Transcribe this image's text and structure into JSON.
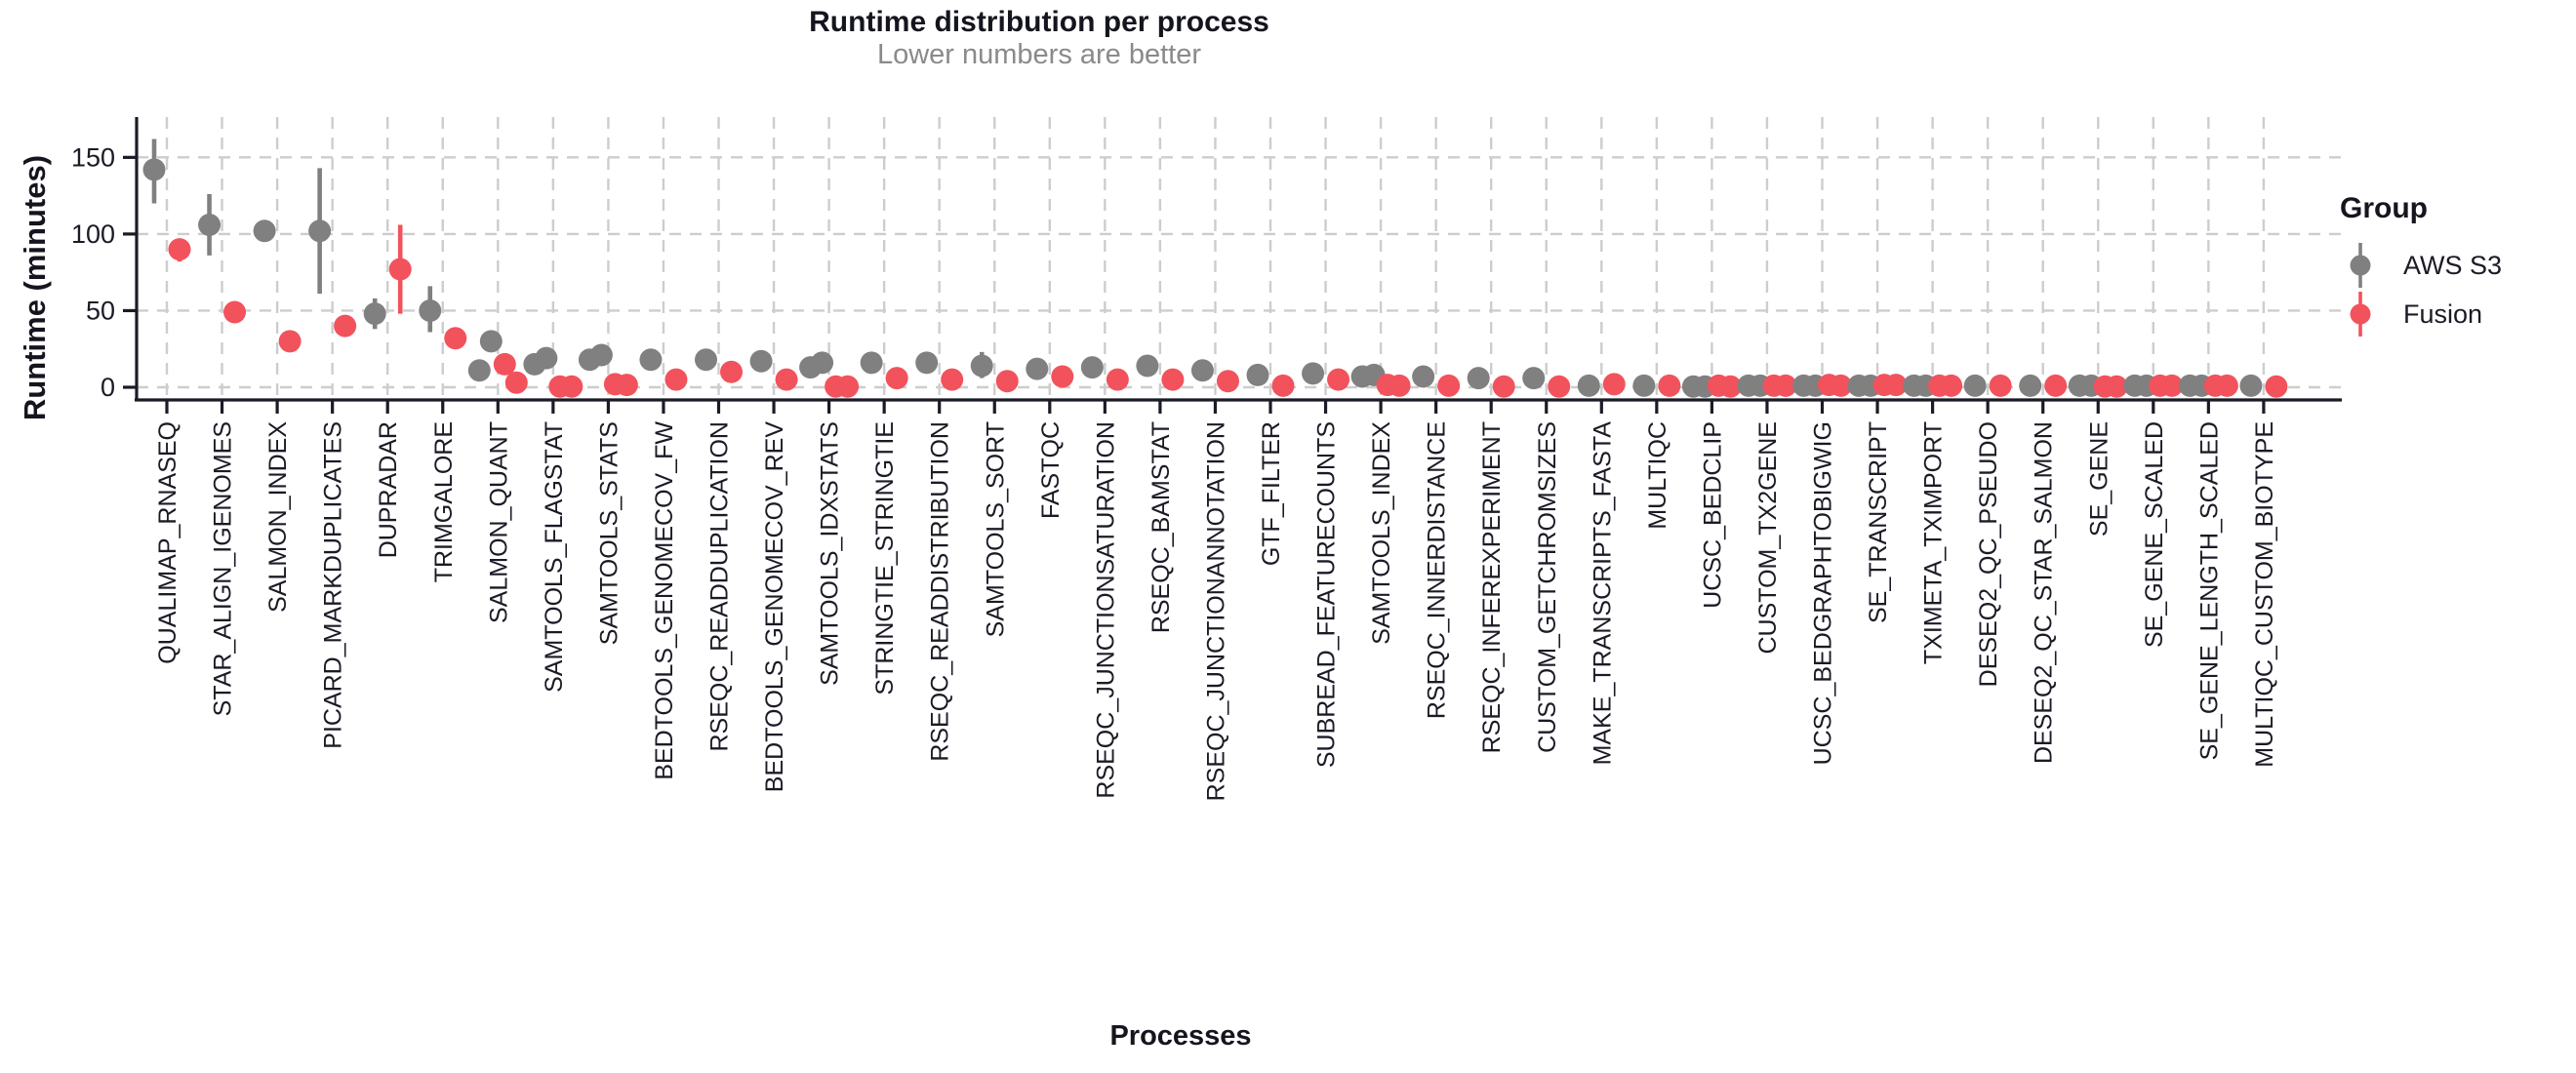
{
  "page": {
    "background": "#ffffff"
  },
  "header": {
    "title": "Runtime distribution per process",
    "subtitle": "Lower numbers are better"
  },
  "axes": {
    "y_title": "Runtime (minutes)",
    "x_title": "Processes"
  },
  "legend": {
    "title": "Group",
    "items": [
      {
        "label": "AWS S3",
        "color": "#808080"
      },
      {
        "label": "Fusion",
        "color": "#f2525c"
      }
    ]
  },
  "style": {
    "accent_gray": "#808080",
    "accent_red": "#f2525c",
    "axis_color": "#1b1b26",
    "grid_color": "#cdcdcd",
    "subtitle_color": "#8a8a8a"
  },
  "chart_data": {
    "type": "scatter",
    "title": "Runtime distribution per process",
    "subtitle": "Lower numbers are better",
    "xlabel": "Processes",
    "ylabel": "Runtime (minutes)",
    "ylim": [
      0,
      165
    ],
    "yticks": [
      0,
      50,
      100,
      150
    ],
    "grid": true,
    "legend_position": "right",
    "groups": [
      {
        "name": "AWS S3",
        "color": "#808080"
      },
      {
        "name": "Fusion",
        "color": "#f2525c"
      }
    ],
    "processes": [
      {
        "name": "QUALIMAP_RNASEQ",
        "aws": {
          "points": [
            142
          ],
          "range": [
            120,
            162
          ]
        },
        "fusion": {
          "points": [
            90
          ],
          "range": [
            82,
            96
          ]
        }
      },
      {
        "name": "STAR_ALIGN_IGENOMES",
        "aws": {
          "points": [
            106
          ],
          "range": [
            86,
            126
          ]
        },
        "fusion": {
          "points": [
            49
          ]
        }
      },
      {
        "name": "SALMON_INDEX",
        "aws": {
          "points": [
            102
          ]
        },
        "fusion": {
          "points": [
            30
          ]
        }
      },
      {
        "name": "PICARD_MARKDUPLICATES",
        "aws": {
          "points": [
            102
          ],
          "range": [
            61,
            143
          ]
        },
        "fusion": {
          "points": [
            40
          ]
        }
      },
      {
        "name": "DUPRADAR",
        "aws": {
          "points": [
            48
          ],
          "range": [
            38,
            58
          ]
        },
        "fusion": {
          "points": [
            77
          ],
          "range": [
            48,
            106
          ]
        }
      },
      {
        "name": "TRIMGALORE",
        "aws": {
          "points": [
            50
          ],
          "range": [
            36,
            66
          ]
        },
        "fusion": {
          "points": [
            32
          ]
        }
      },
      {
        "name": "SALMON_QUANT",
        "aws": {
          "points": [
            30,
            11
          ]
        },
        "fusion": {
          "points": [
            15,
            3
          ]
        }
      },
      {
        "name": "SAMTOOLS_FLAGSTAT",
        "aws": {
          "points": [
            19,
            15
          ]
        },
        "fusion": {
          "points": [
            0.5,
            0.5
          ]
        }
      },
      {
        "name": "SAMTOOLS_STATS",
        "aws": {
          "points": [
            21,
            18
          ]
        },
        "fusion": {
          "points": [
            2,
            1.5
          ]
        }
      },
      {
        "name": "BEDTOOLS_GENOMECOV_FW",
        "aws": {
          "points": [
            18
          ]
        },
        "fusion": {
          "points": [
            5
          ]
        }
      },
      {
        "name": "RSEQC_READDUPLICATION",
        "aws": {
          "points": [
            18
          ]
        },
        "fusion": {
          "points": [
            10
          ]
        }
      },
      {
        "name": "BEDTOOLS_GENOMECOV_REV",
        "aws": {
          "points": [
            17
          ]
        },
        "fusion": {
          "points": [
            5
          ]
        }
      },
      {
        "name": "SAMTOOLS_IDXSTATS",
        "aws": {
          "points": [
            16,
            13
          ]
        },
        "fusion": {
          "points": [
            0.5,
            0.5
          ]
        }
      },
      {
        "name": "STRINGTIE_STRINGTIE",
        "aws": {
          "points": [
            16
          ]
        },
        "fusion": {
          "points": [
            6
          ]
        }
      },
      {
        "name": "RSEQC_READDISTRIBUTION",
        "aws": {
          "points": [
            16
          ]
        },
        "fusion": {
          "points": [
            5
          ]
        }
      },
      {
        "name": "SAMTOOLS_SORT",
        "aws": {
          "points": [
            14
          ],
          "range": [
            6,
            23
          ]
        },
        "fusion": {
          "points": [
            4
          ]
        }
      },
      {
        "name": "FASTQC",
        "aws": {
          "points": [
            12
          ]
        },
        "fusion": {
          "points": [
            7
          ]
        }
      },
      {
        "name": "RSEQC_JUNCTIONSATURATION",
        "aws": {
          "points": [
            13
          ]
        },
        "fusion": {
          "points": [
            5
          ]
        }
      },
      {
        "name": "RSEQC_BAMSTAT",
        "aws": {
          "points": [
            14
          ]
        },
        "fusion": {
          "points": [
            5
          ]
        }
      },
      {
        "name": "RSEQC_JUNCTIONANNOTATION",
        "aws": {
          "points": [
            11
          ]
        },
        "fusion": {
          "points": [
            4
          ]
        }
      },
      {
        "name": "GTF_FILTER",
        "aws": {
          "points": [
            8
          ]
        },
        "fusion": {
          "points": [
            1
          ]
        }
      },
      {
        "name": "SUBREAD_FEATURECOUNTS",
        "aws": {
          "points": [
            9
          ]
        },
        "fusion": {
          "points": [
            5
          ]
        }
      },
      {
        "name": "SAMTOOLS_INDEX",
        "aws": {
          "points": [
            8,
            7
          ]
        },
        "fusion": {
          "points": [
            1.5,
            1
          ]
        }
      },
      {
        "name": "RSEQC_INNERDISTANCE",
        "aws": {
          "points": [
            7
          ]
        },
        "fusion": {
          "points": [
            1
          ]
        }
      },
      {
        "name": "RSEQC_INFEREXPERIMENT",
        "aws": {
          "points": [
            6
          ]
        },
        "fusion": {
          "points": [
            0.5
          ]
        }
      },
      {
        "name": "CUSTOM_GETCHROMSIZES",
        "aws": {
          "points": [
            6
          ]
        },
        "fusion": {
          "points": [
            0.5
          ]
        }
      },
      {
        "name": "MAKE_TRANSCRIPTS_FASTA",
        "aws": {
          "points": [
            1
          ]
        },
        "fusion": {
          "points": [
            2
          ]
        }
      },
      {
        "name": "MULTIQC",
        "aws": {
          "points": [
            1
          ]
        },
        "fusion": {
          "points": [
            1
          ]
        }
      },
      {
        "name": "UCSC_BEDCLIP",
        "aws": {
          "points": [
            0.5,
            0.5
          ]
        },
        "fusion": {
          "points": [
            1,
            0.5
          ]
        }
      },
      {
        "name": "CUSTOM_TX2GENE",
        "aws": {
          "points": [
            1,
            1
          ]
        },
        "fusion": {
          "points": [
            1,
            1
          ]
        }
      },
      {
        "name": "UCSC_BEDGRAPHTOBIGWIG",
        "aws": {
          "points": [
            1,
            1
          ]
        },
        "fusion": {
          "points": [
            1.5,
            1
          ]
        }
      },
      {
        "name": "SE_TRANSCRIPT",
        "aws": {
          "points": [
            1,
            1
          ]
        },
        "fusion": {
          "points": [
            1.5,
            1.5
          ]
        }
      },
      {
        "name": "TXIMETA_TXIMPORT",
        "aws": {
          "points": [
            1,
            1
          ]
        },
        "fusion": {
          "points": [
            1,
            1
          ]
        }
      },
      {
        "name": "DESEQ2_QC_PSEUDO",
        "aws": {
          "points": [
            1
          ]
        },
        "fusion": {
          "points": [
            1
          ]
        }
      },
      {
        "name": "DESEQ2_QC_STAR_SALMON",
        "aws": {
          "points": [
            1
          ]
        },
        "fusion": {
          "points": [
            1
          ]
        }
      },
      {
        "name": "SE_GENE",
        "aws": {
          "points": [
            1,
            1
          ]
        },
        "fusion": {
          "points": [
            0.5,
            0.5
          ]
        }
      },
      {
        "name": "SE_GENE_SCALED",
        "aws": {
          "points": [
            1,
            1
          ]
        },
        "fusion": {
          "points": [
            1,
            1
          ]
        }
      },
      {
        "name": "SE_GENE_LENGTH_SCALED",
        "aws": {
          "points": [
            1,
            1
          ]
        },
        "fusion": {
          "points": [
            1,
            1
          ]
        }
      },
      {
        "name": "MULTIQC_CUSTOM_BIOTYPE",
        "aws": {
          "points": [
            1
          ]
        },
        "fusion": {
          "points": [
            0.5
          ]
        }
      }
    ]
  }
}
